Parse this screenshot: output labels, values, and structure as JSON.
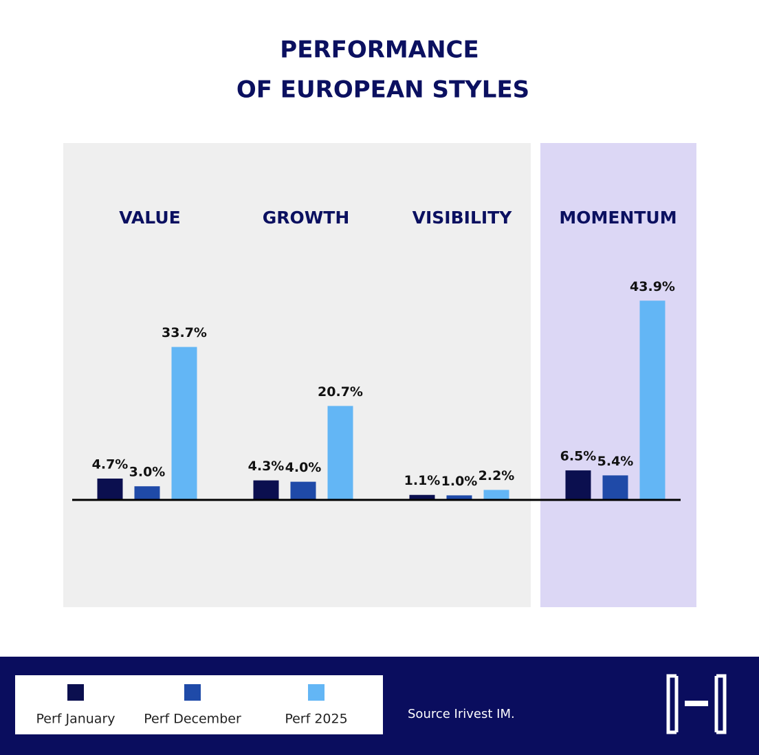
{
  "chart_data": {
    "type": "bar",
    "title": [
      "PERFORMANCE",
      "OF EUROPEAN STYLES"
    ],
    "categories": [
      "VALUE",
      "GROWTH",
      "VISIBILITY",
      "MOMENTUM"
    ],
    "series": [
      {
        "name": "Perf January",
        "color": "#0b0f4f",
        "values": [
          4.7,
          4.3,
          1.1,
          6.5
        ],
        "value_labels": [
          "4.7%",
          "4.3%",
          "1.1%",
          "6.5%"
        ]
      },
      {
        "name": "Perf December",
        "color": "#1f4aa8",
        "values": [
          3.0,
          4.0,
          1.0,
          5.4
        ],
        "value_labels": [
          "3.0%",
          "4.0%",
          "1.0%",
          "5.4%"
        ]
      },
      {
        "name": "Perf 2025",
        "color": "#63b6f5",
        "values": [
          33.7,
          20.7,
          2.2,
          43.9
        ],
        "value_labels": [
          "33.7%",
          "20.7%",
          "2.2%",
          "43.9%"
        ]
      }
    ]
  },
  "source": "Source Irivest IM."
}
